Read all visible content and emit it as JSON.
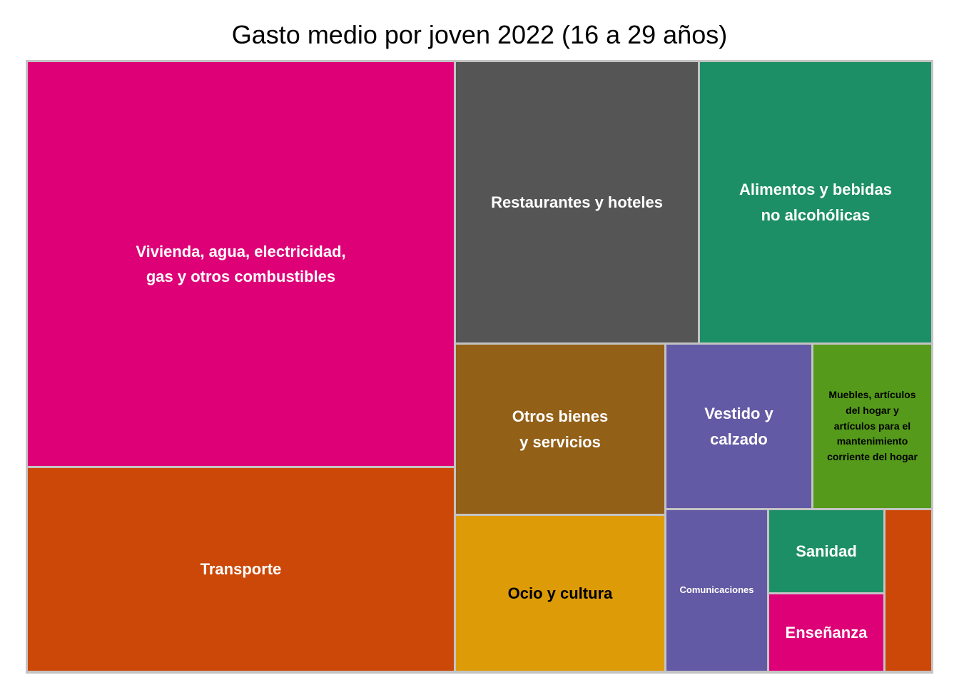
{
  "chart_data": {
    "type": "treemap",
    "title": "Gasto medio por joven 2022 (16 a 29 años)",
    "tiles": [
      {
        "label": "Vivienda, agua, electricidad,\ngas y otros combustibles",
        "value": 3590,
        "color": "#de0077",
        "text_color": "#ffffff",
        "font_size": 22
      },
      {
        "label": "Transporte",
        "value": 1815,
        "color": "#cc4808",
        "text_color": "#ffffff",
        "font_size": 22
      },
      {
        "label": "Restaurantes y hoteles",
        "value": 1410,
        "color": "#555555",
        "text_color": "#ffffff",
        "font_size": 22
      },
      {
        "label": "Alimentos y bebidas\nno alcohólicas",
        "value": 1355,
        "color": "#1d8f66",
        "text_color": "#ffffff",
        "font_size": 22
      },
      {
        "label": "Otros bienes\ny servicios",
        "value": 730,
        "color": "#936018",
        "text_color": "#ffffff",
        "font_size": 22
      },
      {
        "label": "Ocio y cultura",
        "value": 695,
        "color": "#dd9c07",
        "text_color": "#000000",
        "font_size": 22
      },
      {
        "label": "Vestido y\ncalzado",
        "value": 495,
        "color": "#625aa4",
        "text_color": "#ffffff",
        "font_size": 22
      },
      {
        "label": "Muebles, artículos\ndel hogar y\nartículos para el\nmantenimiento\ncorriente del hogar",
        "value": 400,
        "color": "#559a1a",
        "text_color": "#000000",
        "font_size": 14
      },
      {
        "label": "Comunicaciones",
        "value": 335,
        "color": "#625aa4",
        "text_color": "#ffffff",
        "font_size": 13
      },
      {
        "label": "Sanidad",
        "value": 195,
        "color": "#1d8f66",
        "text_color": "#ffffff",
        "font_size": 22
      },
      {
        "label": "Enseñanza",
        "value": 190,
        "color": "#de0077",
        "text_color": "#ffffff",
        "font_size": 22
      },
      {
        "label": "",
        "value": 145,
        "color": "#cc4808",
        "text_color": "#ffffff",
        "font_size": 14
      }
    ]
  }
}
